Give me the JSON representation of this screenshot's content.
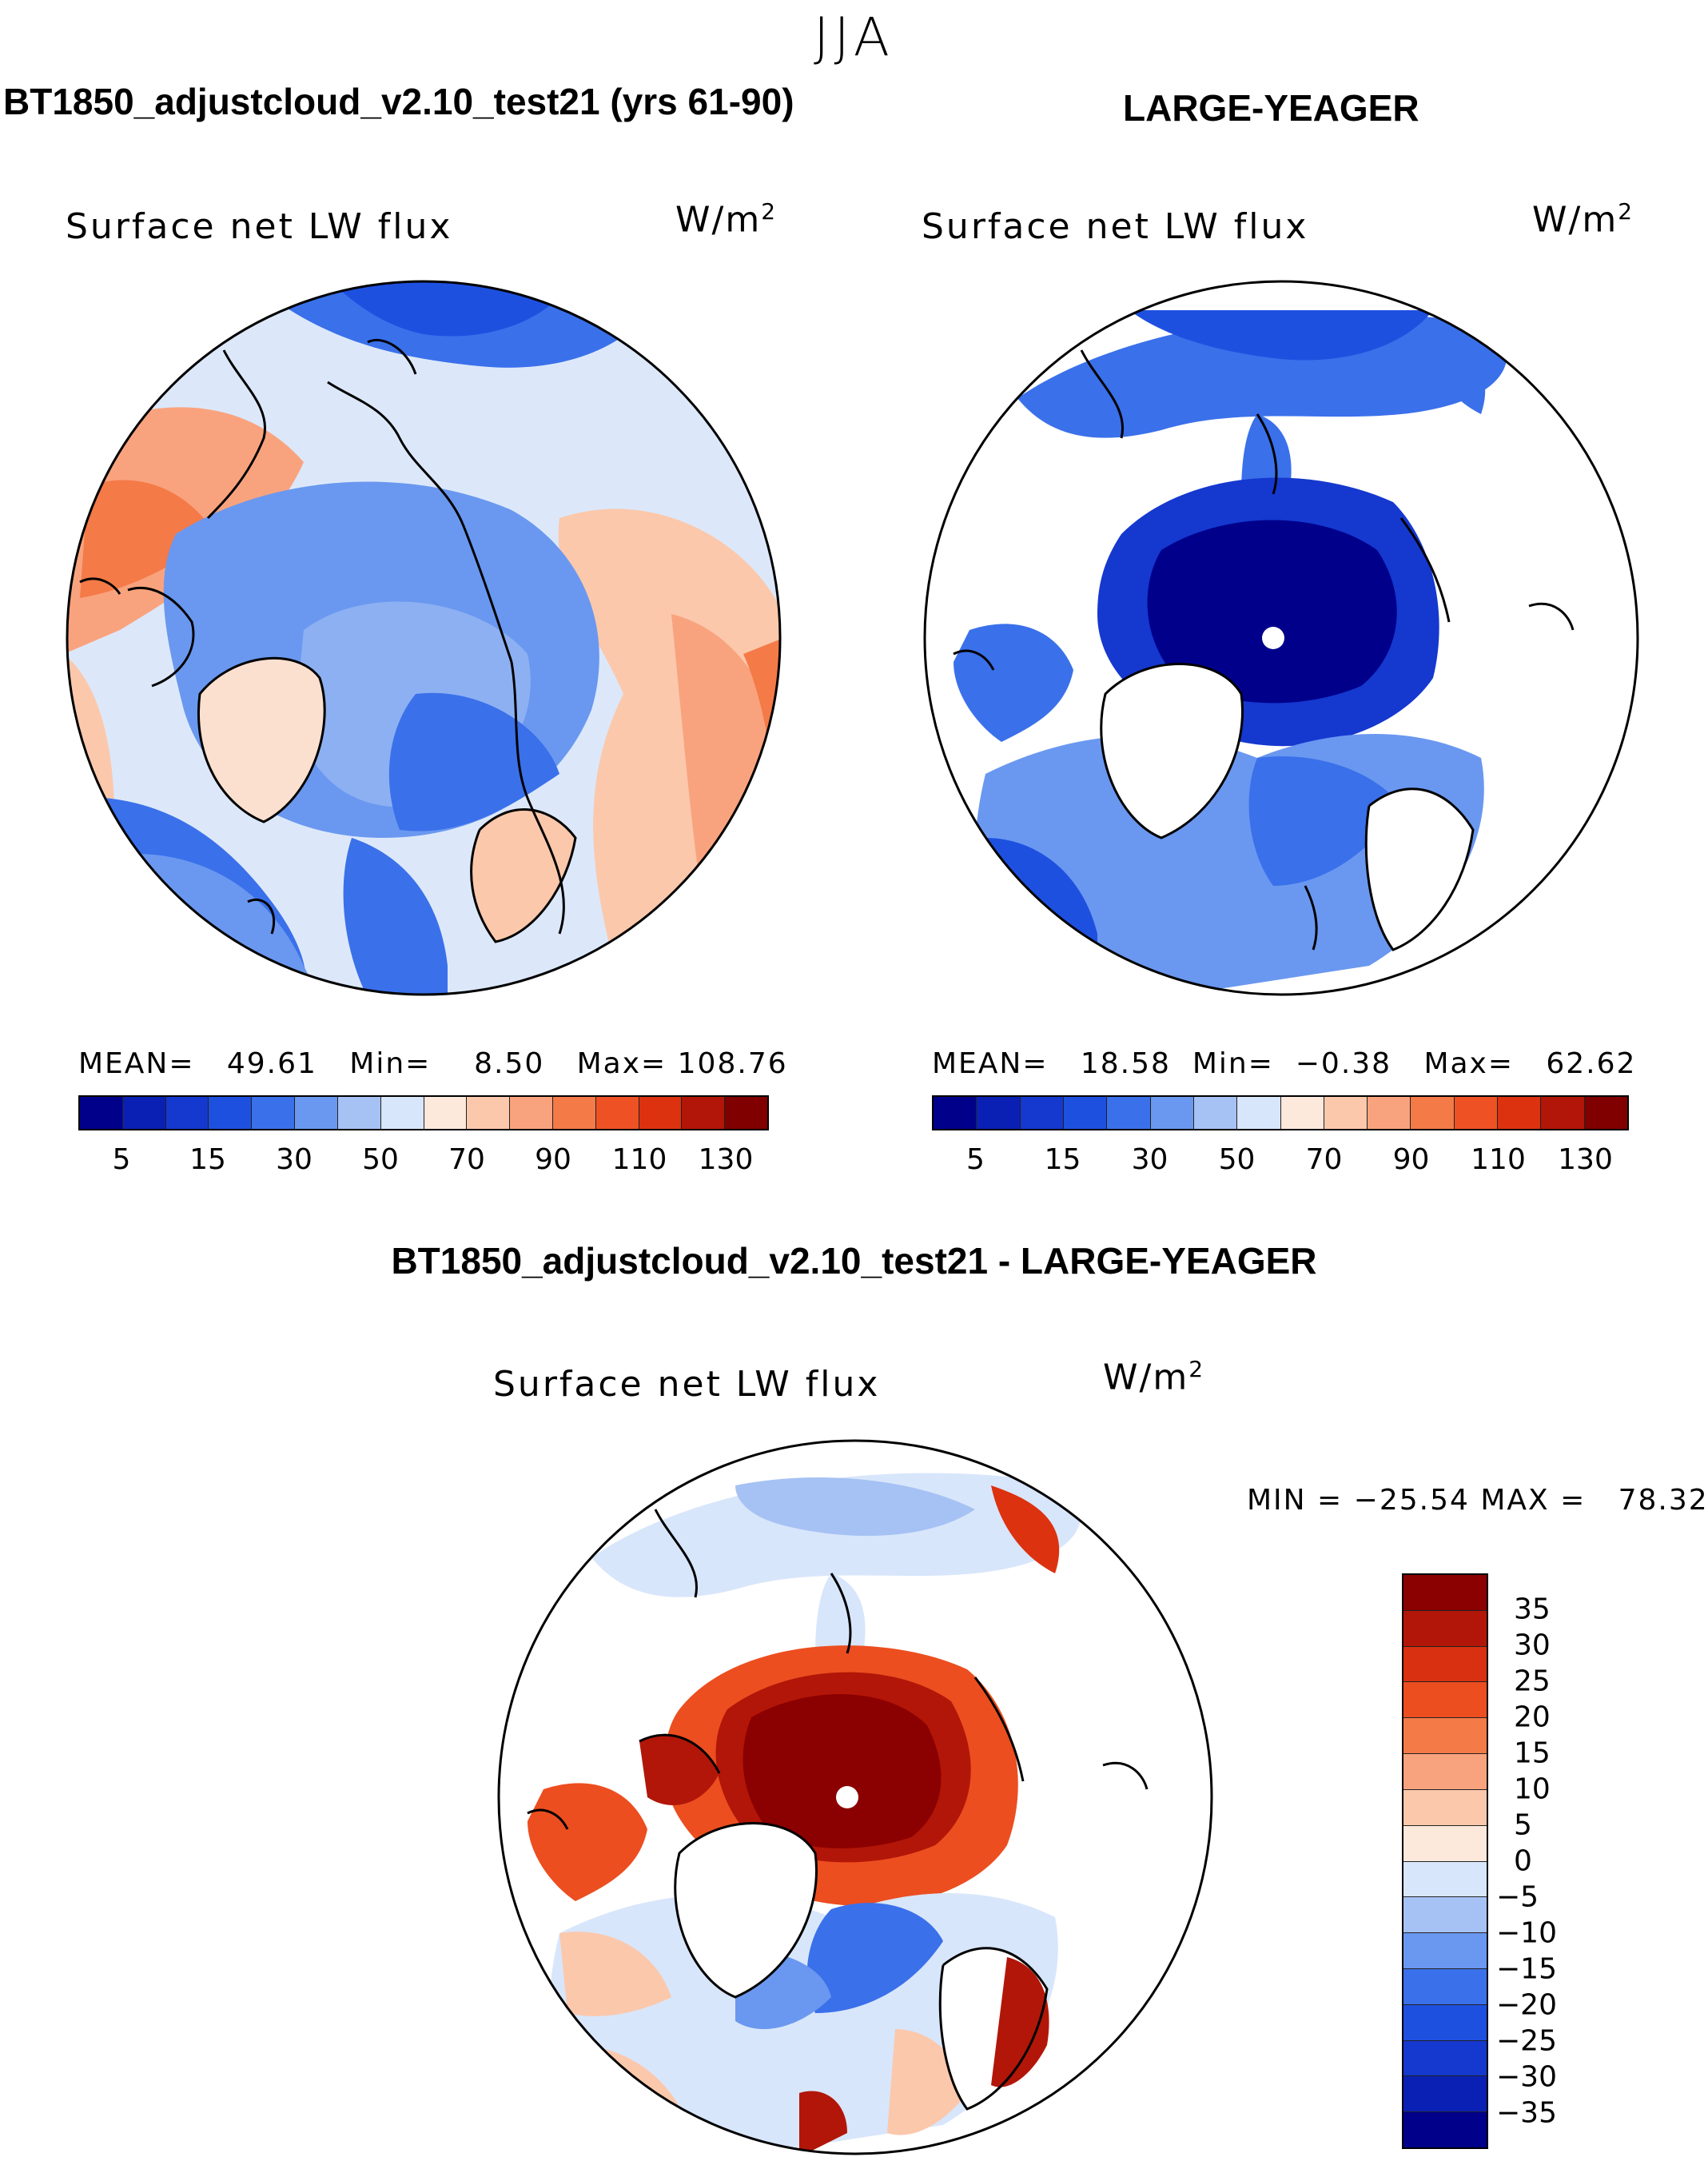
{
  "figure": {
    "season": "JJA",
    "colors": {
      "deep_blue": "#00008b",
      "mid_blue": "#1e5ee6",
      "light_blue": "#9cbcf2",
      "pale": "#dce8fa",
      "peach": "#fcd2bc",
      "orange": "#f47a48",
      "dark_red": "#8b0000"
    }
  },
  "panel_model": {
    "case_title": "BT1850_adjustcloud_v2.10_test21 (yrs 61-90)",
    "plot_title": "Surface net LW flux",
    "units_base": "W/m",
    "units_exp": "2",
    "stats": {
      "mean_label": "MEAN=",
      "mean": "49.61",
      "min_label": "Min=",
      "min": "8.50",
      "max_label": "Max=",
      "max": "108.76"
    }
  },
  "panel_obs": {
    "case_title": "LARGE-YEAGER",
    "plot_title": "Surface net LW flux",
    "units_base": "W/m",
    "units_exp": "2",
    "stats": {
      "mean_label": "MEAN=",
      "mean": "18.58",
      "min_label": "Min=",
      "min": "−0.38",
      "max_label": "Max=",
      "max": "62.62"
    }
  },
  "panel_diff": {
    "case_title": "BT1850_adjustcloud_v2.10_test21 - LARGE-YEAGER",
    "plot_title": "Surface net LW flux",
    "units_base": "W/m",
    "units_exp": "2",
    "minmax": "MIN = −25.54 MAX =   78.32"
  },
  "colorbar_main": {
    "colors": [
      "#00008b",
      "#0a20b4",
      "#1538cf",
      "#1e50e0",
      "#3a70ea",
      "#6a98f0",
      "#a6c2f4",
      "#d8e6fb",
      "#fde8dc",
      "#fbc8ac",
      "#f9a37e",
      "#f47a48",
      "#ee5224",
      "#dc3210",
      "#b21608",
      "#800000"
    ],
    "tick_labels": [
      "5",
      "15",
      "30",
      "50",
      "70",
      "90",
      "110",
      "130"
    ]
  },
  "colorbar_diff": {
    "colors": [
      "#8b0000",
      "#b21608",
      "#d83010",
      "#ec4e20",
      "#f47a48",
      "#f9a37e",
      "#fbc8ac",
      "#fde8dc",
      "#d8e6fb",
      "#a6c2f4",
      "#6a98f0",
      "#3a70ea",
      "#1e50e0",
      "#1538cf",
      "#0a20b4",
      "#00008b"
    ],
    "tick_labels": [
      "35",
      "30",
      "25",
      "20",
      "15",
      "10",
      "5",
      "0",
      "−5",
      "−10",
      "−15",
      "−20",
      "−25",
      "−30",
      "−35"
    ]
  }
}
